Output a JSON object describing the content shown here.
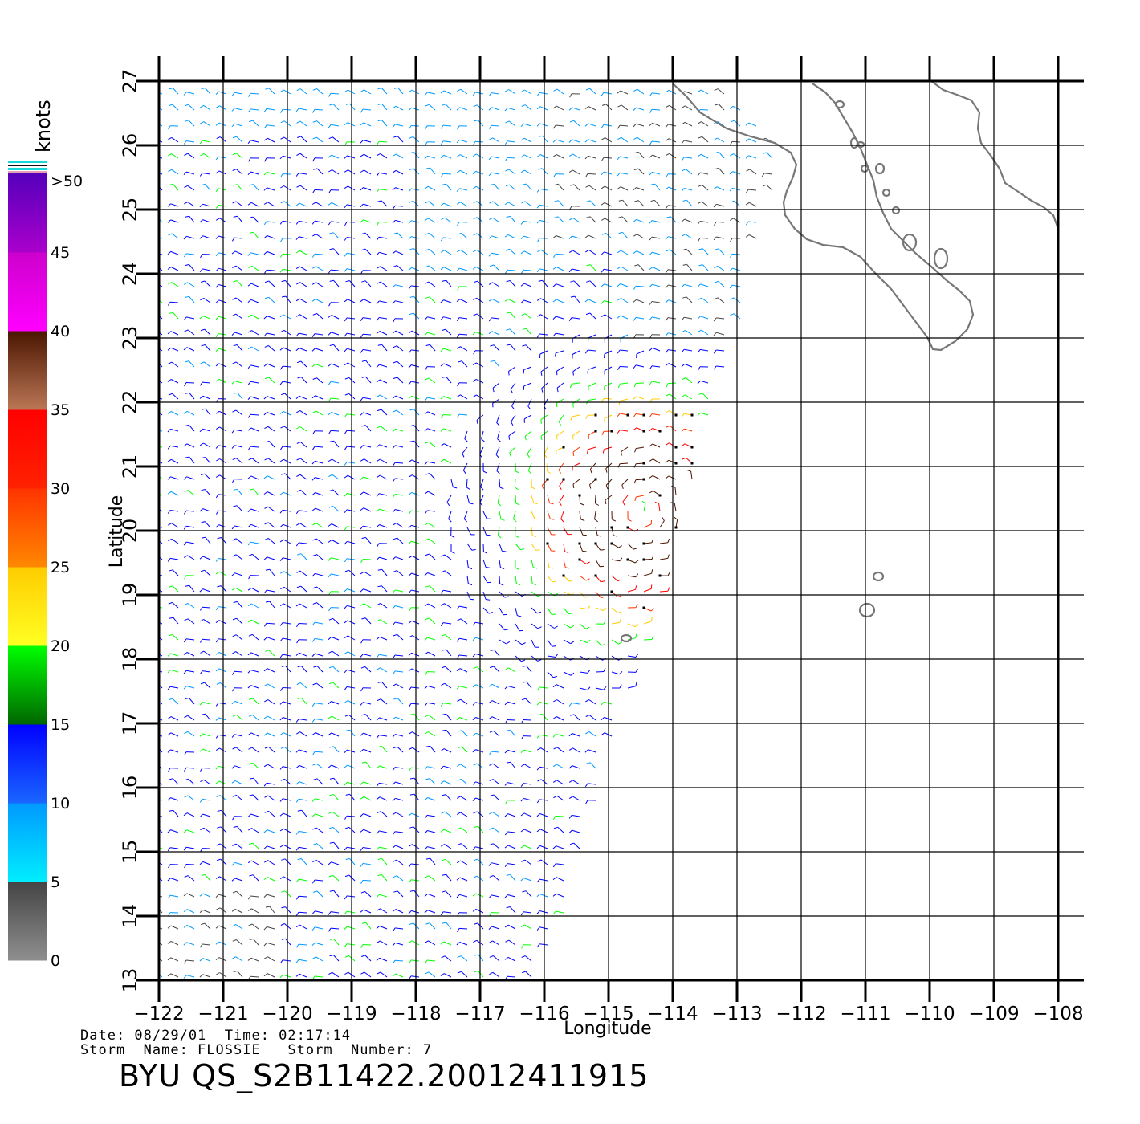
{
  "legend": {
    "unit_label": "knots",
    "tick_labels": [
      ">50",
      "45",
      "40",
      "35",
      "30",
      "25",
      "20",
      "15",
      "10",
      "5",
      "0"
    ],
    "bands": [
      {
        "from": 0,
        "to": 5,
        "top": "#444444",
        "bottom": "#8f8f8f"
      },
      {
        "from": 5,
        "to": 10,
        "top": "#0099ff",
        "bottom": "#00eeff"
      },
      {
        "from": 10,
        "to": 15,
        "top": "#0000ff",
        "bottom": "#1a66ff"
      },
      {
        "from": 15,
        "to": 20,
        "top": "#00ff00",
        "bottom": "#006600"
      },
      {
        "from": 20,
        "to": 25,
        "top": "#ffcc00",
        "bottom": "#ffff22"
      },
      {
        "from": 25,
        "to": 30,
        "top": "#ff3300",
        "bottom": "#ff8800"
      },
      {
        "from": 30,
        "to": 35,
        "top": "#ff0000",
        "bottom": "#ff2200"
      },
      {
        "from": 35,
        "to": 40,
        "top": "#4a1500",
        "bottom": "#bb7755"
      },
      {
        "from": 40,
        "to": 45,
        "top": "#cc00cc",
        "bottom": "#ff00ff"
      },
      {
        "from": 45,
        "to": 50,
        "top": "#5500bb",
        "bottom": "#aa00cc"
      }
    ]
  },
  "axes": {
    "xlabel": "Longitude",
    "ylabel": "Latitude",
    "lon_range": [
      -122,
      -108
    ],
    "lat_range": [
      13,
      27
    ],
    "lon_ticks": [
      "-122",
      "-121",
      "-120",
      "-119",
      "-118",
      "-117",
      "-116",
      "-115",
      "-114",
      "-113",
      "-112",
      "-111",
      "-110",
      "-109",
      "-108"
    ],
    "lat_ticks": [
      "13",
      "14",
      "15",
      "16",
      "17",
      "18",
      "19",
      "20",
      "21",
      "22",
      "23",
      "24",
      "25",
      "26",
      "27"
    ],
    "grid": true
  },
  "storm": {
    "center_lon": -114.5,
    "center_lat": 20.3,
    "max_wind_knots": 40
  },
  "swath_edge_lon_by_lat": [
    [
      13.0,
      -116.2
    ],
    [
      14.0,
      -115.7
    ],
    [
      15.0,
      -115.4
    ],
    [
      16.0,
      -115.1
    ],
    [
      17.0,
      -114.9
    ],
    [
      18.0,
      -114.5
    ],
    [
      19.0,
      -114.2
    ],
    [
      20.0,
      -113.9
    ],
    [
      21.0,
      -113.6
    ],
    [
      22.0,
      -113.4
    ],
    [
      23.0,
      -113.0
    ],
    [
      24.0,
      -112.8
    ],
    [
      25.0,
      -112.5
    ],
    [
      26.0,
      -112.3
    ],
    [
      27.0,
      -113.2
    ]
  ],
  "footer": {
    "date_line": "Date: 08/29/01  Time: 02:17:14",
    "storm_line": "Storm  Name: FLOSSIE   Storm  Number: 7",
    "title": "BYU  QS_S2B11422.20012411915"
  }
}
